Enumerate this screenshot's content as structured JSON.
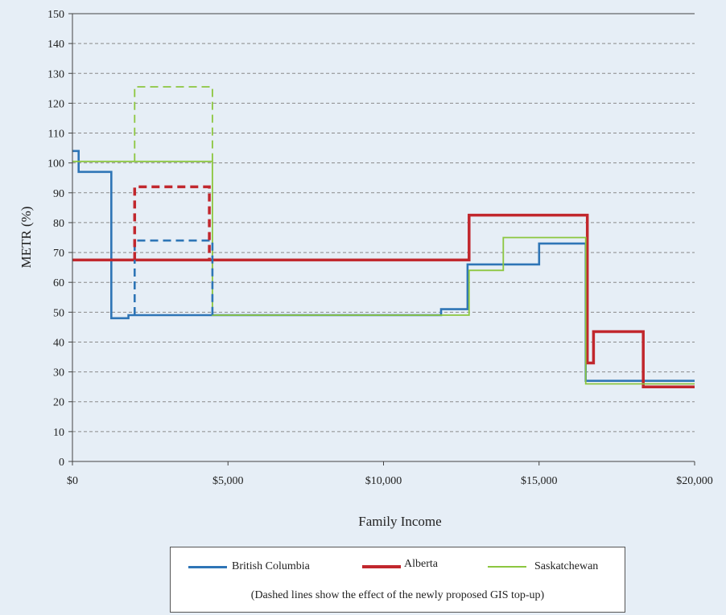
{
  "chart_data": {
    "type": "line",
    "title": "",
    "xlabel": "Family Income",
    "ylabel": "METR (%)",
    "xlim": [
      0,
      20000
    ],
    "ylim": [
      0,
      150
    ],
    "xticks": [
      0,
      5000,
      10000,
      15000,
      20000
    ],
    "xtick_labels": [
      "$0",
      "$5,000",
      "$10,000",
      "$15,000",
      "$20,000"
    ],
    "yticks": [
      0,
      10,
      20,
      30,
      40,
      50,
      60,
      70,
      80,
      90,
      100,
      110,
      120,
      130,
      140,
      150
    ],
    "ytick_labels": [
      "0",
      "10",
      "20",
      "30",
      "40",
      "50",
      "60",
      "70",
      "80",
      "90",
      "100",
      "110",
      "120",
      "130",
      "140",
      "150"
    ],
    "grid": "horizontal-dashed",
    "legend_position": "bottom",
    "series": [
      {
        "name": "British Columbia",
        "color": "#2e75b6",
        "style": "solid",
        "points": [
          [
            0,
            104
          ],
          [
            200,
            104
          ],
          [
            200,
            97
          ],
          [
            1250,
            97
          ],
          [
            1250,
            48
          ],
          [
            1800,
            48
          ],
          [
            1800,
            49
          ],
          [
            11850,
            49
          ],
          [
            11850,
            51
          ],
          [
            12700,
            51
          ],
          [
            12700,
            66
          ],
          [
            15000,
            66
          ],
          [
            15000,
            73
          ],
          [
            16500,
            73
          ],
          [
            16500,
            27
          ],
          [
            20000,
            27
          ]
        ]
      },
      {
        "name": "Alberta",
        "color": "#c1272d",
        "style": "solid",
        "points": [
          [
            0,
            67.5
          ],
          [
            12750,
            67.5
          ],
          [
            12750,
            82.5
          ],
          [
            16550,
            82.5
          ],
          [
            16550,
            33
          ],
          [
            16750,
            33
          ],
          [
            16750,
            43.5
          ],
          [
            18350,
            43.5
          ],
          [
            18350,
            25
          ],
          [
            20000,
            25
          ]
        ]
      },
      {
        "name": "Saskatchewan",
        "color": "#8cc63f",
        "style": "solid",
        "points": [
          [
            0,
            100.5
          ],
          [
            4500,
            100.5
          ],
          [
            4500,
            49
          ],
          [
            12750,
            49
          ],
          [
            12750,
            64
          ],
          [
            13850,
            64
          ],
          [
            13850,
            75
          ],
          [
            16500,
            75
          ],
          [
            16500,
            26
          ],
          [
            20000,
            26
          ]
        ]
      },
      {
        "name": "",
        "color": "#2e75b6",
        "style": "dashed",
        "points": [
          [
            2000,
            49
          ],
          [
            2000,
            74
          ],
          [
            4500,
            74
          ],
          [
            4500,
            49
          ]
        ]
      },
      {
        "name": "",
        "color": "#c1272d",
        "style": "dashed",
        "points": [
          [
            2000,
            67.5
          ],
          [
            2000,
            92
          ],
          [
            4400,
            92
          ],
          [
            4400,
            67.5
          ]
        ]
      },
      {
        "name": "",
        "color": "#8cc63f",
        "style": "dashed",
        "points": [
          [
            2000,
            100.5
          ],
          [
            2000,
            125.5
          ],
          [
            4500,
            125.5
          ],
          [
            4500,
            100.5
          ]
        ]
      }
    ],
    "legend": {
      "entries": [
        {
          "label": "British Columbia",
          "color": "#2e75b6"
        },
        {
          "label": "Alberta",
          "color": "#c1272d"
        },
        {
          "label": "Saskatchewan",
          "color": "#8cc63f"
        }
      ],
      "note": "(Dashed lines show the effect of the newly proposed GIS top-up)"
    }
  }
}
